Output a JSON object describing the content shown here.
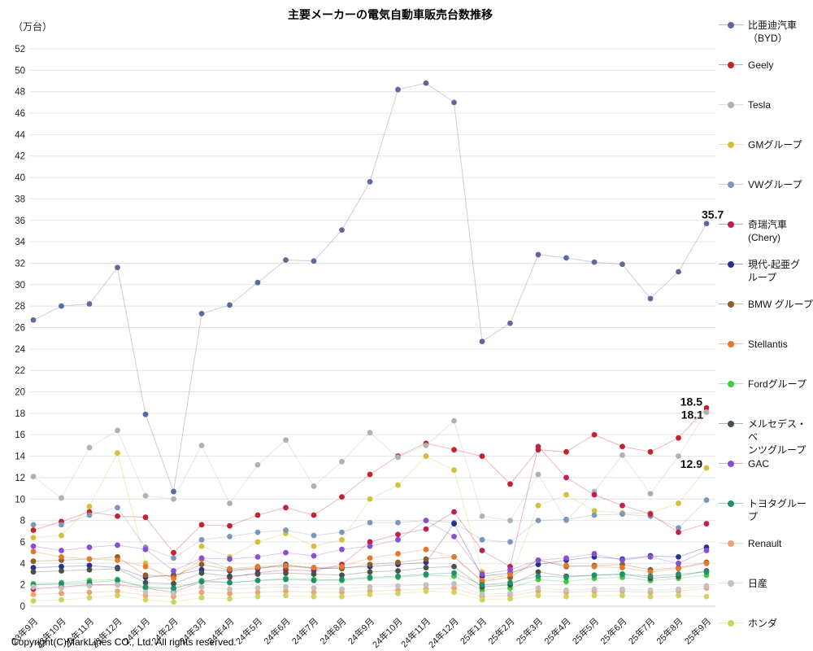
{
  "page": {
    "title": "主要メーカーの電気自動車販売台数推移",
    "unit_label": "（万台）",
    "copyright": "Copyright(C)MarkLines CO., Ltd. All rights reserved."
  },
  "chart_data": {
    "type": "line",
    "title": "主要メーカーの電気自動車販売台数推移",
    "ylabel": "（万台）",
    "ylim": [
      0,
      52
    ],
    "ytick_step": 2,
    "grid": true,
    "legend_position": "right",
    "categories": [
      "23年9月",
      "23年10月",
      "23年11月",
      "23年12月",
      "24年1月",
      "24年2月",
      "24年3月",
      "24年4月",
      "24年5月",
      "24年6月",
      "24年7月",
      "24年8月",
      "24年9月",
      "24年10月",
      "24年11月",
      "24年12月",
      "25年1月",
      "25年2月",
      "25年3月",
      "25年4月",
      "25年5月",
      "25年6月",
      "25年7月",
      "25年8月",
      "25年9月"
    ],
    "series": [
      {
        "id": "byd",
        "name": "比亜迪汽車（BYD）",
        "legend_lines": [
          "比亜迪汽車",
          "（BYD）"
        ],
        "color": "#5d689e",
        "end_label": true,
        "values": [
          26.7,
          28.0,
          28.2,
          31.6,
          17.9,
          10.7,
          27.3,
          28.1,
          30.2,
          32.3,
          32.2,
          35.1,
          39.6,
          48.2,
          48.8,
          47.0,
          24.7,
          26.4,
          32.8,
          32.5,
          32.1,
          31.9,
          28.7,
          31.2,
          35.7
        ]
      },
      {
        "id": "geely",
        "name": "Geely",
        "legend_lines": [
          "Geely"
        ],
        "color": "#c4232a",
        "end_label": true,
        "values": [
          7.1,
          7.9,
          8.8,
          8.4,
          8.3,
          5.0,
          7.6,
          7.5,
          8.5,
          9.2,
          8.5,
          10.2,
          12.3,
          14.0,
          15.2,
          14.6,
          14.0,
          11.4,
          14.6,
          14.4,
          16.0,
          14.9,
          14.4,
          15.7,
          18.5
        ]
      },
      {
        "id": "tesla",
        "name": "Tesla",
        "legend_lines": [
          "Tesla"
        ],
        "color": "#b1b1b1",
        "end_label": true,
        "values": [
          12.1,
          10.1,
          14.8,
          16.4,
          10.3,
          10.0,
          15.0,
          9.6,
          13.2,
          15.5,
          11.2,
          13.5,
          16.2,
          13.9,
          15.0,
          17.3,
          8.4,
          8.0,
          12.3,
          8.0,
          10.7,
          14.1,
          10.5,
          14.0,
          18.1
        ]
      },
      {
        "id": "gm",
        "name": "GMグループ",
        "legend_lines": [
          "GMグループ"
        ],
        "color": "#d4be3e",
        "end_label": true,
        "values": [
          6.4,
          6.6,
          9.3,
          14.3,
          4.0,
          2.1,
          5.6,
          4.6,
          6.0,
          6.8,
          5.6,
          6.2,
          10.0,
          11.3,
          14.0,
          12.7,
          3.2,
          2.6,
          9.4,
          10.4,
          8.9,
          8.7,
          8.7,
          9.6,
          12.9
        ]
      },
      {
        "id": "vw",
        "name": "VWグループ",
        "legend_lines": [
          "VWグループ"
        ],
        "color": "#7e97b8",
        "end_label": false,
        "values": [
          7.6,
          7.6,
          8.5,
          9.2,
          5.5,
          4.5,
          6.2,
          6.5,
          6.9,
          7.1,
          6.6,
          6.9,
          7.8,
          7.8,
          8.0,
          7.8,
          6.2,
          6.0,
          8.0,
          8.1,
          8.5,
          8.6,
          8.4,
          7.3,
          9.9
        ]
      },
      {
        "id": "chery",
        "name": "奇瑞汽車 (Chery)",
        "legend_lines": [
          "奇瑞汽車",
          "(Chery)"
        ],
        "color": "#bf2050",
        "end_label": false,
        "values": [
          1.6,
          1.8,
          2.0,
          2.0,
          1.7,
          1.3,
          2.3,
          2.7,
          3.1,
          3.4,
          3.3,
          3.9,
          6.0,
          6.7,
          7.2,
          8.8,
          5.2,
          3.7,
          14.9,
          12.0,
          10.4,
          9.4,
          8.6,
          6.9,
          7.7
        ]
      },
      {
        "id": "hyundai-kia",
        "name": "現代-起亜グループ",
        "legend_lines": [
          "現代-起亜グ",
          "ループ"
        ],
        "color": "#273193",
        "end_label": false,
        "values": [
          3.6,
          3.7,
          3.8,
          3.6,
          2.7,
          2.9,
          3.4,
          3.3,
          3.5,
          3.9,
          3.5,
          3.6,
          3.7,
          3.9,
          4.1,
          7.7,
          2.8,
          3.1,
          3.9,
          4.3,
          4.6,
          4.4,
          4.7,
          4.6,
          5.5
        ]
      },
      {
        "id": "bmw",
        "name": "BMW グループ",
        "legend_lines": [
          "BMW グループ"
        ],
        "color": "#8f5d26",
        "end_label": false,
        "values": [
          4.2,
          4.3,
          4.4,
          4.6,
          2.9,
          2.8,
          3.9,
          3.4,
          3.6,
          3.7,
          3.6,
          3.5,
          3.9,
          4.1,
          4.4,
          4.6,
          2.3,
          2.7,
          4.3,
          3.7,
          3.8,
          3.9,
          3.4,
          3.6,
          4.1
        ]
      },
      {
        "id": "stellantis",
        "name": "Stellantis",
        "legend_lines": [
          "Stellantis"
        ],
        "color": "#e2792f",
        "end_label": false,
        "values": [
          5.1,
          4.6,
          4.4,
          4.3,
          3.7,
          2.6,
          4.4,
          3.5,
          3.7,
          3.8,
          3.6,
          3.7,
          4.5,
          4.9,
          5.3,
          4.6,
          2.4,
          3.0,
          4.3,
          3.8,
          3.7,
          3.6,
          3.2,
          3.5,
          4.0
        ]
      },
      {
        "id": "ford",
        "name": "Fordグループ",
        "legend_lines": [
          "Fordグループ"
        ],
        "color": "#3ecb3e",
        "end_label": false,
        "values": [
          2.1,
          2.2,
          2.4,
          2.5,
          1.7,
          1.6,
          2.4,
          2.2,
          2.4,
          2.6,
          2.5,
          2.4,
          2.6,
          2.7,
          2.9,
          2.8,
          1.5,
          1.7,
          2.5,
          2.3,
          2.6,
          2.7,
          2.4,
          2.6,
          2.9
        ]
      },
      {
        "id": "mercedes",
        "name": "メルセデス・ベンツグループ",
        "legend_lines": [
          "メルセデス・ベ",
          "ンツグループ"
        ],
        "color": "#475349",
        "end_label": false,
        "values": [
          3.2,
          3.3,
          3.4,
          3.5,
          2.2,
          2.1,
          3.1,
          2.8,
          3.0,
          3.1,
          3.0,
          2.9,
          3.2,
          3.3,
          3.6,
          3.7,
          1.8,
          2.0,
          3.2,
          2.8,
          2.9,
          3.0,
          2.6,
          2.8,
          3.3
        ]
      },
      {
        "id": "gac",
        "name": "GAC",
        "legend_lines": [
          "GAC"
        ],
        "color": "#8a4fd0",
        "end_label": false,
        "values": [
          5.6,
          5.2,
          5.5,
          5.7,
          5.3,
          3.3,
          4.5,
          4.4,
          4.6,
          5.0,
          4.7,
          5.3,
          5.6,
          6.2,
          8.0,
          6.5,
          3.0,
          3.4,
          4.3,
          4.5,
          4.9,
          4.3,
          4.6,
          4.0,
          5.2
        ]
      },
      {
        "id": "toyota",
        "name": "トヨタグループ",
        "legend_lines": [
          "トヨタグループ"
        ],
        "color": "#1f8f6e",
        "end_label": false,
        "values": [
          2.0,
          2.1,
          2.2,
          2.4,
          1.8,
          1.7,
          2.3,
          2.2,
          2.4,
          2.5,
          2.4,
          2.5,
          2.7,
          2.8,
          3.0,
          3.1,
          2.0,
          2.2,
          2.8,
          2.7,
          2.9,
          3.0,
          2.8,
          3.0,
          3.2
        ]
      },
      {
        "id": "renault",
        "name": "Renault",
        "legend_lines": [
          "Renault"
        ],
        "color": "#eea172",
        "end_label": false,
        "values": [
          1.1,
          1.2,
          1.3,
          1.4,
          1.0,
          0.9,
          1.3,
          1.2,
          1.3,
          1.4,
          1.3,
          1.3,
          1.4,
          1.5,
          1.6,
          1.7,
          0.9,
          1.0,
          1.4,
          1.3,
          1.4,
          1.4,
          1.3,
          1.4,
          1.7
        ]
      },
      {
        "id": "nissan",
        "name": "日産",
        "legend_lines": [
          "日産"
        ],
        "color": "#c6c0ba",
        "end_label": false,
        "values": [
          1.8,
          1.7,
          1.9,
          2.0,
          1.3,
          1.2,
          1.8,
          1.6,
          1.7,
          1.8,
          1.7,
          1.6,
          1.8,
          1.9,
          2.0,
          2.1,
          1.1,
          1.2,
          1.7,
          1.5,
          1.6,
          1.6,
          1.5,
          1.6,
          1.9
        ]
      },
      {
        "id": "honda",
        "name": "ホンダ",
        "legend_lines": [
          "ホンダ"
        ],
        "color": "#ccd45f",
        "end_label": false,
        "values": [
          0.5,
          0.6,
          0.8,
          1.0,
          0.6,
          0.4,
          0.8,
          0.7,
          0.9,
          1.0,
          0.9,
          0.9,
          1.1,
          1.2,
          1.4,
          1.3,
          0.6,
          0.7,
          1.0,
          0.9,
          1.0,
          1.0,
          0.9,
          1.0,
          0.9
        ]
      }
    ]
  }
}
